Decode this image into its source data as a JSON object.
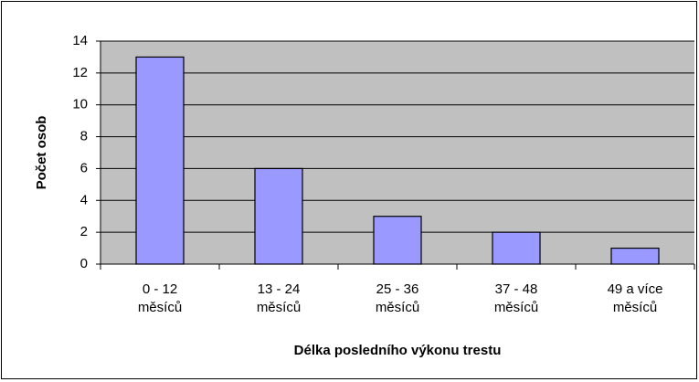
{
  "chart_data": {
    "type": "bar",
    "categories": [
      "0 - 12 měsíců",
      "13 - 24 měsíců",
      "25 - 36 měsíců",
      "37 - 48 měsíců",
      "49 a více měsíců"
    ],
    "values": [
      13,
      6,
      3,
      2,
      1
    ],
    "color": "#9999ff",
    "ylim": [
      0,
      14
    ],
    "yticks": [
      0,
      2,
      4,
      6,
      8,
      10,
      12,
      14
    ],
    "grid": true,
    "xlabel": "Délka posledního výkonu trestu",
    "ylabel": "Počet osob"
  }
}
